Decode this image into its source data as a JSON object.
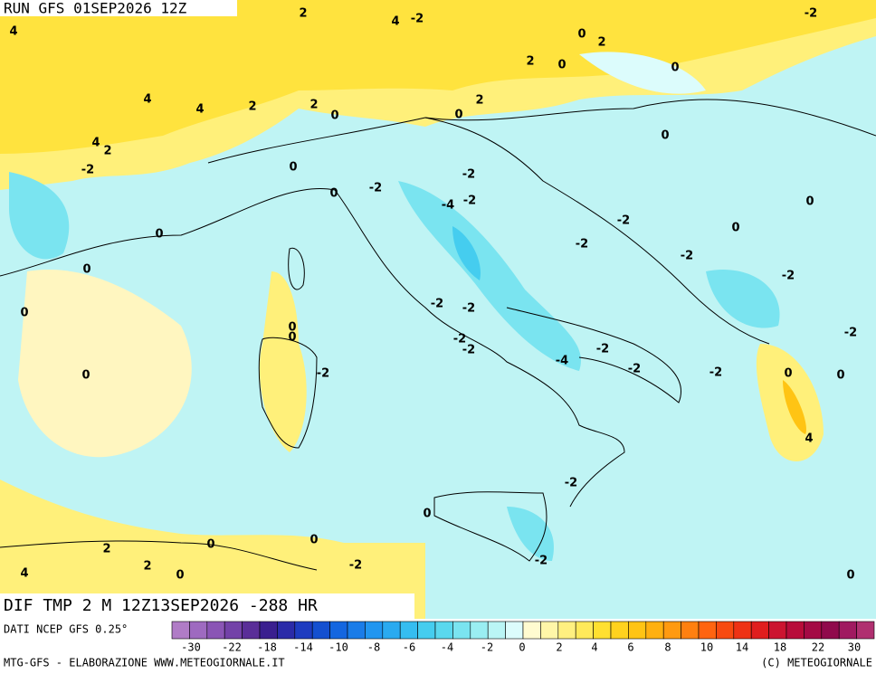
{
  "header": {
    "title": "RUN GFS 01SEP2026 12Z"
  },
  "map": {
    "contour_labels": [
      4,
      2,
      4,
      -2,
      0,
      2,
      -2,
      2,
      0,
      0,
      4,
      4,
      2,
      2,
      0,
      0,
      2,
      4,
      2,
      0,
      -2,
      0,
      0,
      -2,
      -2,
      -4,
      -2,
      0,
      -2,
      0,
      -2,
      0,
      -2,
      0,
      -2,
      0,
      -2,
      -2,
      0,
      0,
      -2,
      -2,
      -2,
      -2,
      -2,
      -4,
      -2,
      -2,
      0,
      0,
      0,
      4,
      -2,
      0,
      0,
      0,
      2,
      2,
      0,
      4,
      -2,
      -2,
      0
    ]
  },
  "footer": {
    "title": "DIF TMP 2 M 12Z13SEP2026 -288 HR",
    "source": "DATI NCEP GFS 0.25°",
    "credit_left": "MTG-GFS - ELABORAZIONE WWW.METEOGIORNALE.IT",
    "credit_right": "(C) METEOGIORNALE"
  },
  "legend": {
    "ticks": [
      -30,
      -22,
      -18,
      -14,
      -10,
      -8,
      -6,
      -4,
      -2,
      0,
      2,
      4,
      6,
      8,
      10,
      14,
      18,
      22,
      30
    ],
    "colors": [
      "#b07cc6",
      "#9e6ac0",
      "#8a55b5",
      "#7342a8",
      "#5a2e98",
      "#3a1f8f",
      "#2b2ba8",
      "#1e3cc0",
      "#1450d0",
      "#1466e0",
      "#1a7ce8",
      "#2196f0",
      "#2aaaf0",
      "#35bdf0",
      "#45cdef",
      "#5ad8ee",
      "#7ae4f0",
      "#9aeef2",
      "#baf5f5",
      "#dcfcfc",
      "#fffbd0",
      "#fff6a8",
      "#fff080",
      "#ffe95a",
      "#ffe030",
      "#ffd21e",
      "#ffc414",
      "#ffb010",
      "#ff9a10",
      "#ff8010",
      "#ff6410",
      "#f84a10",
      "#ee3214",
      "#e01e1e",
      "#cc1430",
      "#b80c3a",
      "#a40a44",
      "#900a4c",
      "#a01a60",
      "#b03070"
    ]
  }
}
